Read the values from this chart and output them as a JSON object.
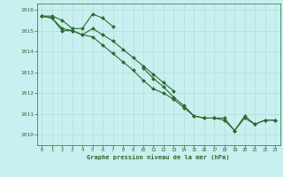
{
  "x": [
    0,
    1,
    2,
    3,
    4,
    5,
    6,
    7,
    8,
    9,
    10,
    11,
    12,
    13,
    14,
    15,
    16,
    17,
    18,
    19,
    20,
    21,
    22,
    23
  ],
  "line1": [
    1015.7,
    1015.7,
    1015.5,
    1015.1,
    1015.1,
    1015.8,
    1015.6,
    1015.2,
    null,
    null,
    null,
    null,
    null,
    null,
    null,
    null,
    null,
    null,
    null,
    null,
    null,
    null,
    null,
    null
  ],
  "line2": [
    1015.7,
    1015.6,
    1015.0,
    1015.0,
    1014.8,
    1015.1,
    1014.8,
    1014.5,
    1014.1,
    1013.7,
    1013.3,
    1012.9,
    1012.5,
    1012.1,
    null,
    null,
    null,
    null,
    null,
    null,
    null,
    null,
    null,
    null
  ],
  "line3": [
    1015.7,
    1015.6,
    1015.1,
    1015.0,
    1014.8,
    1014.7,
    1014.3,
    1013.9,
    1013.5,
    1013.1,
    1012.6,
    1012.2,
    1012.0,
    1011.7,
    1011.3,
    1010.9,
    1010.8,
    1010.8,
    1010.8,
    1010.2,
    1010.8,
    1010.5,
    1010.7,
    1010.7
  ],
  "line4": [
    null,
    null,
    null,
    null,
    null,
    null,
    null,
    null,
    null,
    null,
    1013.2,
    1012.7,
    1012.3,
    1011.8,
    1011.4,
    1010.9,
    1010.8,
    1010.8,
    1010.7,
    1010.2,
    1010.9,
    1010.5,
    1010.7,
    1010.7
  ],
  "ylim": [
    1009.5,
    1016.3
  ],
  "xlim": [
    -0.5,
    23.5
  ],
  "yticks": [
    1010,
    1011,
    1012,
    1013,
    1014,
    1015,
    1016
  ],
  "xticks": [
    0,
    1,
    2,
    3,
    4,
    5,
    6,
    7,
    8,
    9,
    10,
    11,
    12,
    13,
    14,
    15,
    16,
    17,
    18,
    19,
    20,
    21,
    22,
    23
  ],
  "xlabel": "Graphe pression niveau de la mer (hPa)",
  "line_color": "#2d6a2d",
  "bg_color": "#c8f0f0",
  "grid_color": "#b0dcd8",
  "marker": "D",
  "marker_size": 2.0,
  "line_width": 0.8
}
